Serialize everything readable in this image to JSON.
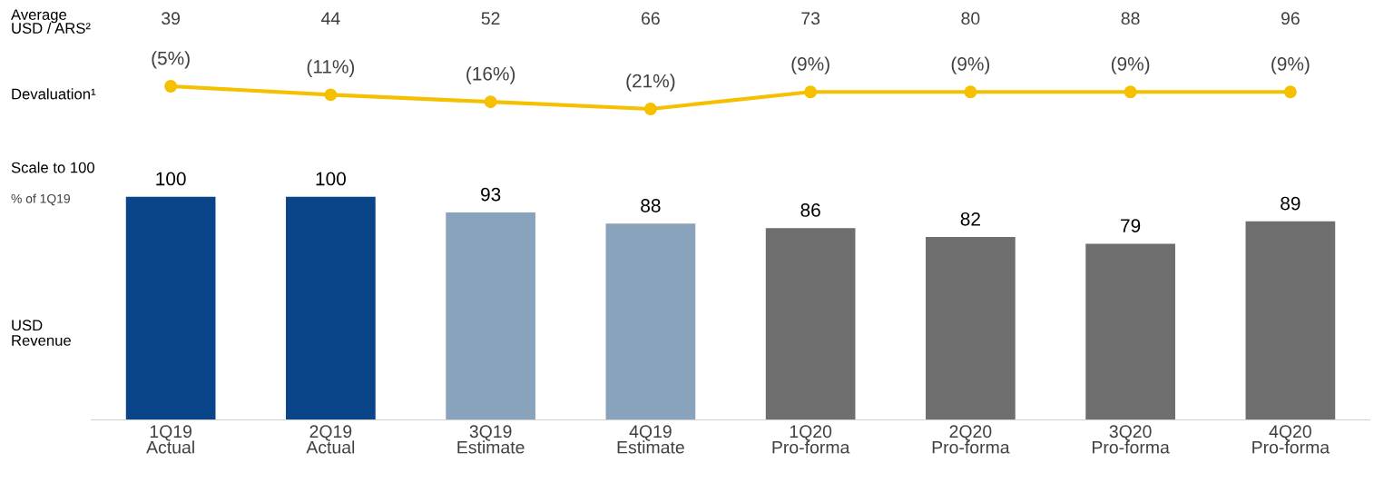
{
  "chart_data": [
    {
      "type": "line",
      "categories": [
        null,
        null,
        null,
        null,
        null,
        null,
        null,
        null
      ],
      "series": [
        {
          "name": "Devaluation¹",
          "color": "#f5c000",
          "values": [
            -5,
            -11,
            -16,
            -21,
            -9,
            -9,
            -9,
            -9
          ],
          "value_labels": [
            "(5%)",
            "(11%)",
            "(16%)",
            "(21%)",
            "(9%)",
            "(9%)",
            "(9%)",
            "(9%)"
          ]
        }
      ],
      "marker": "circle",
      "tick_labels": false,
      "annotations": [
        "Average\nUSD / ARS²",
        "39",
        "44",
        "52",
        "66",
        "73",
        "80",
        "88",
        "96"
      ]
    },
    {
      "type": "bar",
      "categories": [
        "1Q19\nActual",
        "2Q19\nActual",
        "3Q19\nEstimate",
        "4Q19\nEstimate",
        "1Q20\nPro-forma",
        "2Q20\nPro-forma",
        "3Q20\nPro-forma",
        "4Q20\nPro-forma"
      ],
      "values": [
        100,
        100,
        93,
        88,
        86,
        82,
        79,
        89
      ],
      "colors": [
        "#0b4589",
        "#0b4589",
        "#8aa3bd",
        "#8aa3bd",
        "#6e6e6e",
        "#6e6e6e",
        "#6e6e6e",
        "#6e6e6e"
      ],
      "data_labels": true,
      "tick_labels": "x",
      "ylabel": "USD\nRevenue",
      "annotations": [
        "Scale to 100",
        "% of 1Q19"
      ]
    }
  ]
}
